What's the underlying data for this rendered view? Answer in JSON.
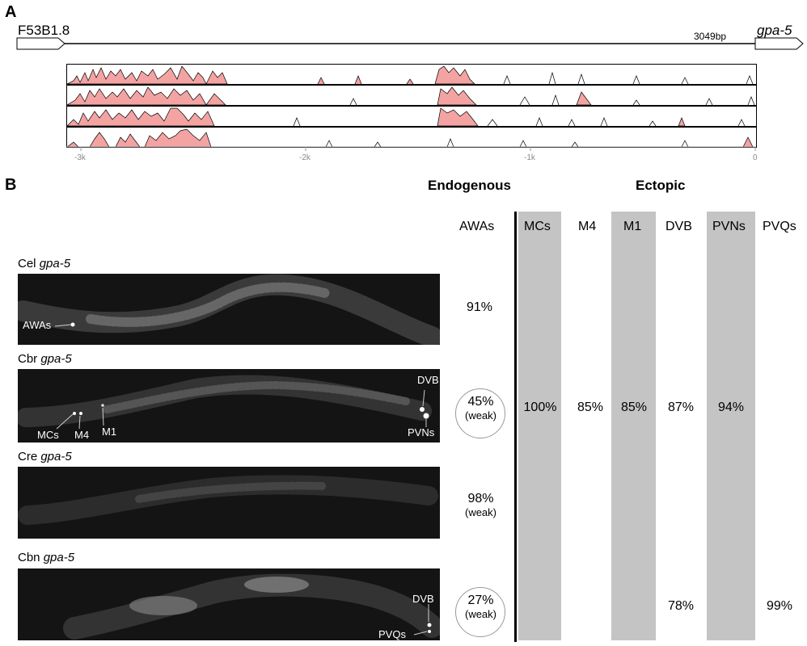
{
  "panelA": {
    "letter": "A",
    "left_gene": "F53B1.8",
    "right_gene": "gpa-5",
    "length_label": "3049bp",
    "axis_ticks": [
      "-3k",
      "-2k",
      "-1k",
      "0"
    ]
  },
  "panelB": {
    "letter": "B",
    "header_endogenous": "Endogenous",
    "header_ectopic": "Ectopic",
    "columns": [
      "AWAs",
      "MCs",
      "M4",
      "M1",
      "DVB",
      "PVNs",
      "PVQs"
    ],
    "rows": [
      {
        "species": "Cel",
        "gene": "gpa-5",
        "awa": "91%",
        "awa_weak": "",
        "circled": false,
        "labels": [
          "AWAs"
        ]
      },
      {
        "species": "Cbr",
        "gene": "gpa-5",
        "awa": "45%",
        "awa_weak": "(weak)",
        "circled": true,
        "labels": [
          "DVB",
          "MCs",
          "M4",
          "M1",
          "PVNs"
        ],
        "ectopic": {
          "MCs": "100%",
          "M4": "85%",
          "M1": "85%",
          "DVB": "87%",
          "PVNs": "94%"
        }
      },
      {
        "species": "Cre",
        "gene": "gpa-5",
        "awa": "98%",
        "awa_weak": "(weak)",
        "circled": false,
        "labels": []
      },
      {
        "species": "Cbn",
        "gene": "gpa-5",
        "awa": "27%",
        "awa_weak": "(weak)",
        "circled": true,
        "labels": [
          "DVB",
          "PVQs"
        ],
        "ectopic": {
          "DVB": "78%",
          "PVQs": "99%"
        }
      }
    ]
  },
  "colors": {
    "conservation_fill": "#f4a3a3",
    "shade": "#c4c4c4",
    "image_bg": "#141414"
  }
}
